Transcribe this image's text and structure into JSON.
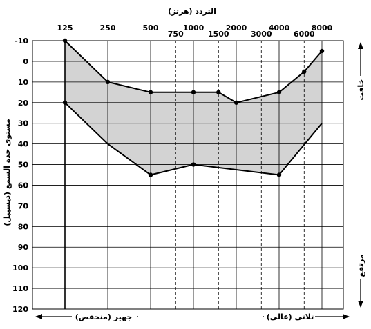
{
  "chart_data": {
    "type": "area",
    "title": "التردد (هرتز)",
    "ylabel": "مستوى حدة السمع (ديسيبل)",
    "ylim": [
      -10,
      120
    ],
    "y_inverted": true,
    "y_ticks": [
      -10,
      0,
      10,
      20,
      30,
      40,
      50,
      60,
      70,
      80,
      90,
      100,
      110,
      120
    ],
    "x_major_ticks": [
      125,
      250,
      500,
      1000,
      2000,
      4000,
      8000
    ],
    "x_minor_ticks": [
      750,
      1500,
      3000,
      6000
    ],
    "x_scale": "log2",
    "grid": true,
    "shaded_region_color": "#d3d3d3",
    "series": [
      {
        "x": [
          125,
          250,
          500,
          1000,
          1500,
          2000,
          4000,
          6000,
          8000
        ],
        "y": [
          -10,
          10,
          15,
          15,
          15,
          20,
          15,
          5,
          -5
        ],
        "markers": [
          true,
          true,
          true,
          true,
          true,
          true,
          true,
          true,
          true
        ]
      },
      {
        "x": [
          125,
          250,
          500,
          1000,
          4000,
          8000
        ],
        "y": [
          20,
          40,
          55,
          50,
          55,
          30
        ],
        "markers": [
          true,
          false,
          true,
          true,
          true,
          false
        ]
      }
    ],
    "annotations": {
      "low_freq": "جهير (منخفض)",
      "high_freq": "ثلاثي (عالي)",
      "top_right": "خافت",
      "bottom_right": "مرتفع"
    }
  }
}
